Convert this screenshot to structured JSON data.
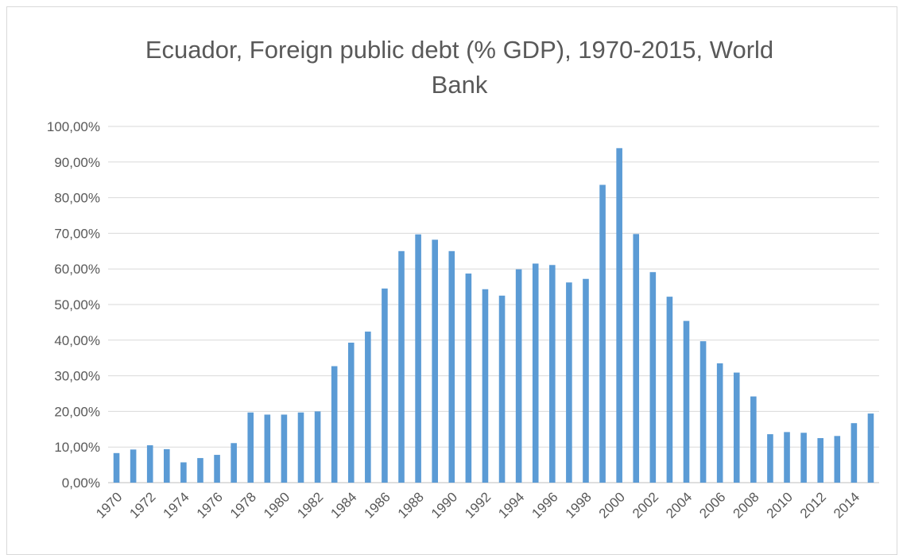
{
  "chart_data": {
    "type": "bar",
    "title_lines": [
      "Ecuador, Foreign public debt (% GDP), 1970-2015, World",
      "Bank"
    ],
    "xlabel": "",
    "ylabel": "",
    "ylim": [
      0,
      1
    ],
    "y_ticks": [
      "0,00%",
      "10,00%",
      "20,00%",
      "30,00%",
      "40,00%",
      "50,00%",
      "60,00%",
      "70,00%",
      "80,00%",
      "90,00%",
      "100,00%"
    ],
    "grid": true,
    "legend": "none",
    "bar_color": "#5b9bd5",
    "categories": [
      "1970",
      "1971",
      "1972",
      "1973",
      "1974",
      "1975",
      "1976",
      "1977",
      "1978",
      "1979",
      "1980",
      "1981",
      "1982",
      "1983",
      "1984",
      "1985",
      "1986",
      "1987",
      "1988",
      "1989",
      "1990",
      "1991",
      "1992",
      "1993",
      "1994",
      "1995",
      "1996",
      "1997",
      "1998",
      "1999",
      "2000",
      "2001",
      "2002",
      "2003",
      "2004",
      "2005",
      "2006",
      "2007",
      "2008",
      "2009",
      "2010",
      "2011",
      "2012",
      "2013",
      "2014",
      "2015"
    ],
    "x_tick_labels": [
      "1970",
      "1972",
      "1974",
      "1976",
      "1978",
      "1980",
      "1982",
      "1984",
      "1986",
      "1988",
      "1990",
      "1992",
      "1994",
      "1996",
      "1998",
      "2000",
      "2002",
      "2004",
      "2006",
      "2008",
      "2010",
      "2012",
      "2014"
    ],
    "values": [
      0.083,
      0.093,
      0.105,
      0.094,
      0.057,
      0.069,
      0.078,
      0.111,
      0.197,
      0.191,
      0.191,
      0.197,
      0.2,
      0.327,
      0.393,
      0.424,
      0.545,
      0.65,
      0.697,
      0.682,
      0.65,
      0.587,
      0.543,
      0.525,
      0.599,
      0.615,
      0.611,
      0.562,
      0.572,
      0.836,
      0.939,
      0.698,
      0.591,
      0.522,
      0.454,
      0.397,
      0.335,
      0.309,
      0.242,
      0.136,
      0.142,
      0.14,
      0.125,
      0.131,
      0.167,
      0.194
    ]
  }
}
